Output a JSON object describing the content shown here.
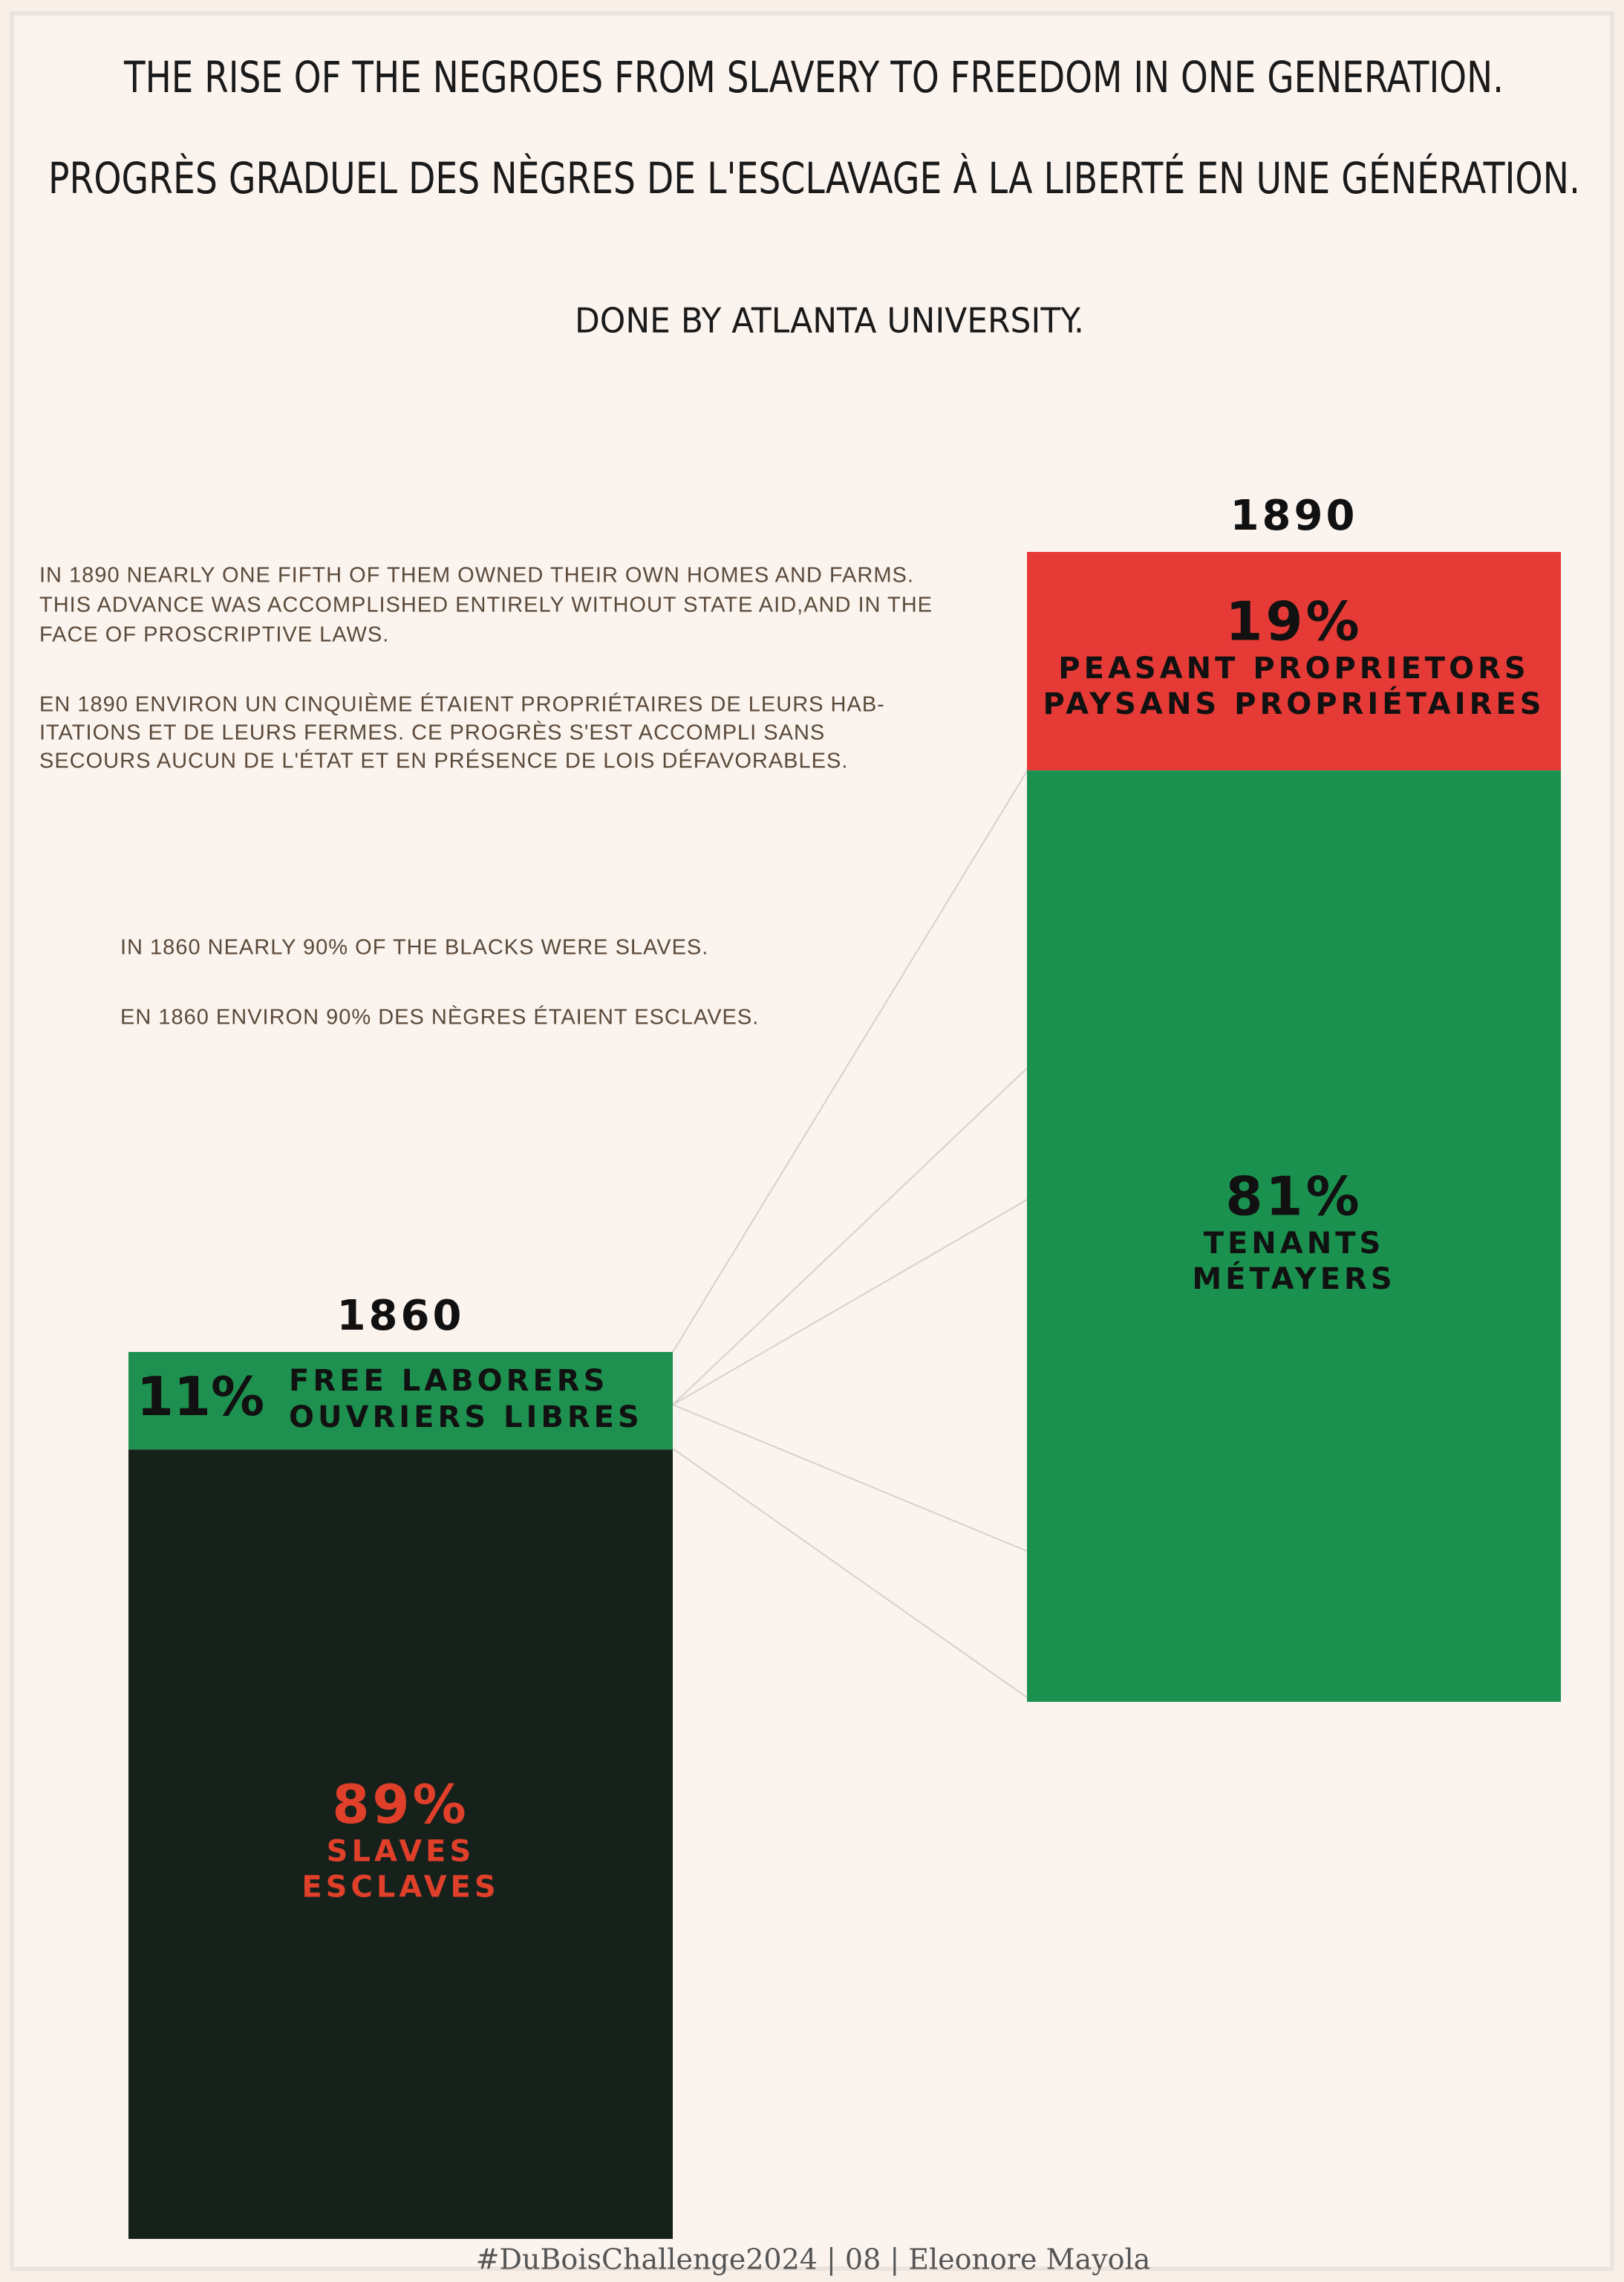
{
  "chart_data": {
    "type": "stacked_column",
    "title": "THE RISE OF THE NEGROES FROM SLAVERY TO FREEDOM IN ONE GENERATION.",
    "title_fr": "PROGRÈS GRADUEL DES NÈGRES DE  L'ESCLAVAGE À LA LIBERTÉ EN UNE GÉNÉRATION.",
    "subtitle": "DONE BY ATLANTA UNIVERSITY.",
    "annotations": [
      {
        "lines": [
          "IN 1890 NEARLY ONE FIFTH OF THEM OWNED THEIR OWN HOMES AND FARMS.",
          "THIS ADVANCE WAS ACCOMPLISHED ENTIRELY WITHOUT STATE AID,AND IN THE",
          "FACE OF PROSCRIPTIVE LAWS."
        ]
      },
      {
        "lines": [
          "EN 1890 ENVIRON UN CINQUIÈME ÉTAIENT PROPRIÉTAIRES DE LEURS HAB-",
          "ITATIONS ET DE LEURS FERMES. CE PROGRÈS S'EST ACCOMPLI SANS",
          "SECOURS AUCUN DE L'ÉTAT ET EN PRÉSENCE DE LOIS DÉFAVORABLES."
        ]
      },
      {
        "lines": [
          "IN 1860 NEARLY 90% OF THE BLACKS WERE SLAVES."
        ]
      },
      {
        "lines": [
          "EN 1860 ENVIRON 90% DES NÈGRES ÉTAIENT ESCLAVES."
        ]
      }
    ],
    "caption": "#DuBoisChallenge2024 | 08 | Eleonore Mayola",
    "bars": [
      {
        "category": "1860",
        "values": [
          11,
          89
        ],
        "value_labels": [
          "11%",
          "89%"
        ],
        "segment_labels": [
          [
            "FREE LABORERS",
            "OUVRIERS LIBRES"
          ],
          [
            "SLAVES",
            "ESCLAVES"
          ]
        ],
        "colors": [
          "#1e9150",
          "#17211c"
        ],
        "label_colors": [
          "#111111",
          "#e0402a"
        ]
      },
      {
        "category": "1890",
        "values": [
          19,
          81
        ],
        "value_labels": [
          "19%",
          "81%"
        ],
        "segment_labels": [
          [
            "PEASANT PROPRIETORS",
            "PAYSANS PROPRIÉTAIRES"
          ],
          [
            "TENANTS",
            "MÉTAYERS"
          ]
        ],
        "colors": [
          "#e53a35",
          "#1b9150"
        ],
        "label_colors": [
          "#111111",
          "#111111"
        ]
      }
    ]
  }
}
